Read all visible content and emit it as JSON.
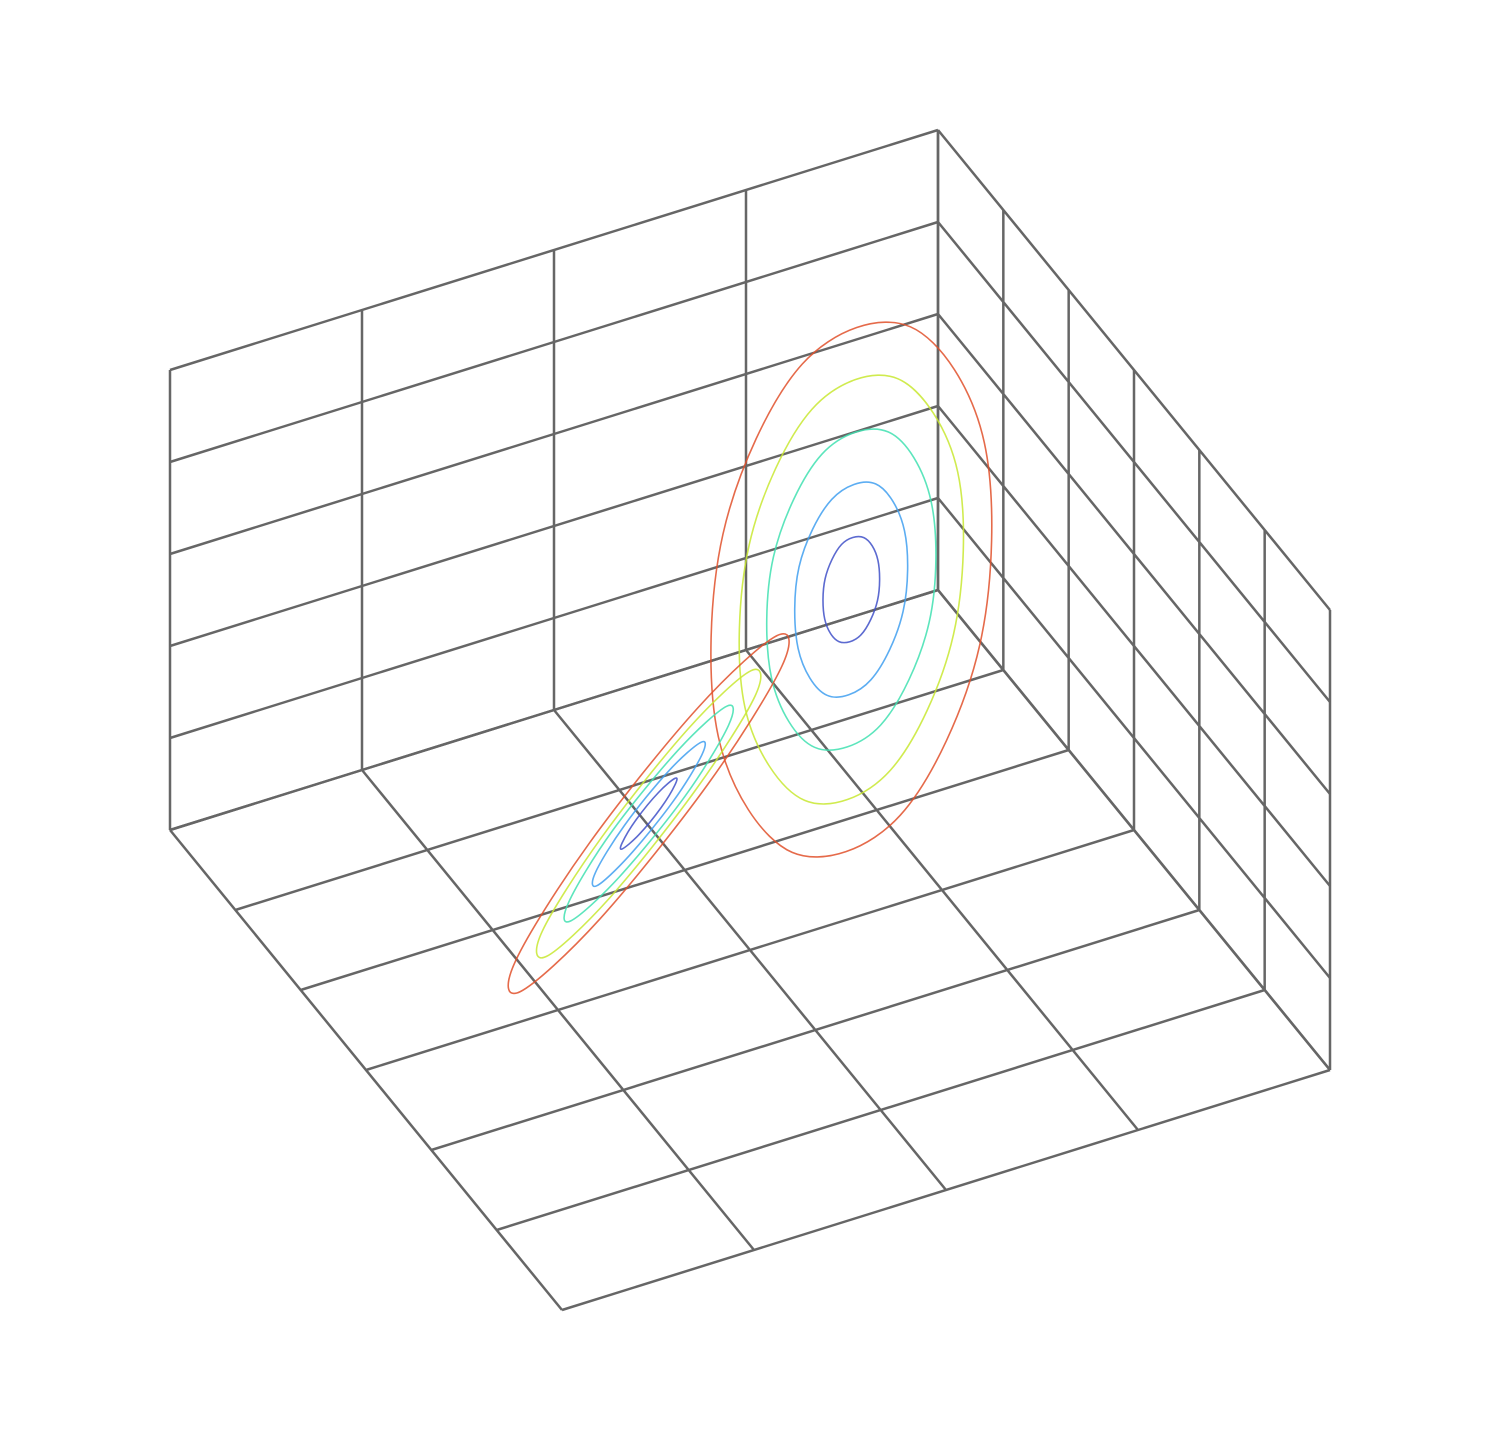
{
  "chart_data": {
    "type": "line3d",
    "xlim": [
      -20,
      20
    ],
    "ylim": [
      -30,
      30
    ],
    "zlim": [
      0,
      50
    ],
    "xticks": [
      -20,
      -10,
      0,
      10,
      20
    ],
    "yticks": [
      -30,
      -20,
      -10,
      0,
      10,
      20,
      30
    ],
    "zticks": [
      0,
      10,
      20,
      30,
      40,
      50
    ],
    "grid": true,
    "series": [
      {
        "color": "#4050c8",
        "x": [
          10.1,
          9.5,
          8,
          6.5,
          5.9,
          6.5,
          8,
          9.5
        ],
        "y": [
          10.1,
          10.5,
          9.5,
          7.6,
          5.9,
          5.5,
          6.5,
          8.4
        ],
        "z": [
          27,
          29.5,
          30.6,
          29.5,
          27,
          24.5,
          23.4,
          24.5
        ]
      },
      {
        "color": "#3f9ff0",
        "x": [
          12.2,
          11,
          8,
          5,
          3.8,
          5,
          8,
          11
        ],
        "y": [
          12.2,
          13.1,
          11,
          7.2,
          3.8,
          2.9,
          5,
          8.9
        ],
        "z": [
          27,
          32.1,
          34.2,
          32.1,
          27,
          21.9,
          19.8,
          21.9
        ]
      },
      {
        "color": "#3fe0b0",
        "x": [
          14.3,
          12.5,
          8,
          3.5,
          1.7,
          3.5,
          8,
          12.5
        ],
        "y": [
          14.3,
          15.6,
          12.5,
          6.7,
          1.7,
          0.4,
          3.5,
          9.3
        ],
        "z": [
          27,
          34.6,
          37.8,
          34.6,
          27,
          19.4,
          16.2,
          19.4
        ]
      },
      {
        "color": "#c8e830",
        "x": [
          16.4,
          13.9,
          8,
          2.1,
          -0.4,
          2.1,
          8,
          13.9
        ],
        "y": [
          16.4,
          18.2,
          14,
          6.3,
          -0.4,
          -2.2,
          2,
          9.7
        ],
        "z": [
          27,
          37.2,
          41.4,
          37.2,
          27,
          16.8,
          12.6,
          16.8
        ]
      },
      {
        "color": "#e0502a",
        "x": [
          18.5,
          15.4,
          8,
          0.6,
          -2.5,
          0.6,
          8,
          15.4
        ],
        "y": [
          18.5,
          20.7,
          15.5,
          5.9,
          -2.5,
          -4.7,
          0.5,
          10.1
        ],
        "z": [
          27,
          39.7,
          45,
          39.7,
          27,
          14.3,
          9,
          14.3
        ]
      },
      {
        "color": "#4050c8",
        "x": [
          -10.1,
          -9.5,
          -8,
          -6.5,
          -5.9,
          -6.5,
          -8,
          -9.5
        ],
        "y": [
          -10.1,
          -10.5,
          -9.5,
          -7.6,
          -5.9,
          -5.5,
          -6.5,
          -8.4
        ],
        "z": [
          27,
          29.5,
          30.6,
          29.5,
          27,
          24.5,
          23.4,
          24.5
        ]
      },
      {
        "color": "#3f9ff0",
        "x": [
          -12.2,
          -11,
          -8,
          -5,
          -3.8,
          -5,
          -8,
          -11
        ],
        "y": [
          -12.2,
          -13.1,
          -11,
          -7.2,
          -3.8,
          -2.9,
          -5,
          -8.9
        ],
        "z": [
          27,
          32.1,
          34.2,
          32.1,
          27,
          21.9,
          19.8,
          21.9
        ]
      },
      {
        "color": "#3fe0b0",
        "x": [
          -14.3,
          -12.5,
          -8,
          -3.5,
          -1.7,
          -3.5,
          -8,
          -12.5
        ],
        "y": [
          -14.3,
          -15.6,
          -12.5,
          -6.7,
          -1.7,
          -0.4,
          -3.5,
          -9.3
        ],
        "z": [
          27,
          34.6,
          37.8,
          34.6,
          27,
          19.4,
          16.2,
          19.4
        ]
      },
      {
        "color": "#c8e830",
        "x": [
          -16.4,
          -13.9,
          -8,
          -2.1,
          0.4,
          -2.1,
          -8,
          -13.9
        ],
        "y": [
          -16.4,
          -18.2,
          -14,
          -6.3,
          0.4,
          2.2,
          -2,
          -9.7
        ],
        "z": [
          27,
          37.2,
          41.4,
          37.2,
          27,
          16.8,
          12.6,
          16.8
        ]
      },
      {
        "color": "#e0502a",
        "x": [
          -18.5,
          -15.4,
          -8,
          -0.6,
          2.5,
          -0.6,
          -8,
          -15.4
        ],
        "y": [
          -18.5,
          -20.7,
          -15.5,
          -5.9,
          2.5,
          4.7,
          -0.5,
          -10.1
        ],
        "z": [
          27,
          39.7,
          45,
          39.7,
          27,
          14.3,
          9,
          14.3
        ]
      }
    ]
  }
}
